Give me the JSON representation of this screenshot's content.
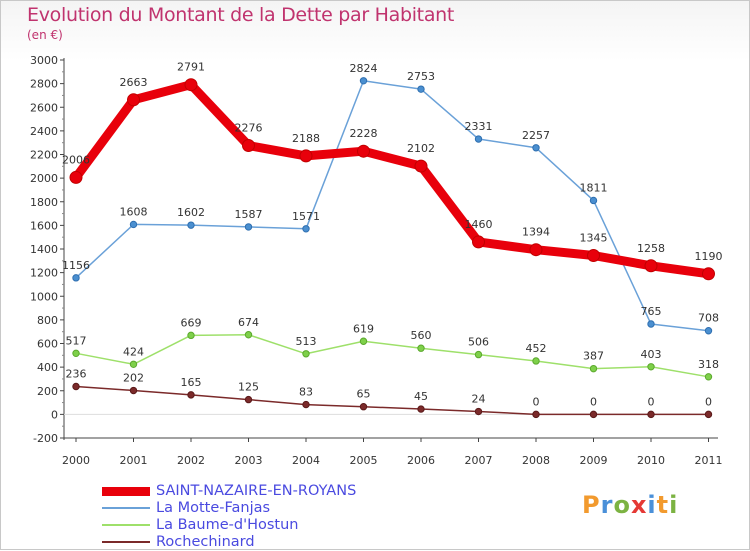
{
  "title": "Evolution du Montant de la Dette par Habitant",
  "unit": "(en €)",
  "logo": {
    "letters": [
      "P",
      "r",
      "o",
      "x",
      "i",
      "t",
      "i"
    ],
    "colors": [
      "#f29a2e",
      "#4a90d9",
      "#7cb342",
      "#e53935",
      "#4a90d9",
      "#f29a2e",
      "#7cb342"
    ]
  },
  "chart_data": {
    "type": "line",
    "title": "Evolution du Montant de la Dette par Habitant",
    "ylabel": "(en €)",
    "x": [
      "2000",
      "2001",
      "2002",
      "2003",
      "2004",
      "2005",
      "2006",
      "2007",
      "2008",
      "2009",
      "2010",
      "2011"
    ],
    "ylim": [
      -200,
      3000
    ],
    "yticks": [
      -200,
      0,
      200,
      400,
      600,
      800,
      1000,
      1200,
      1400,
      1600,
      1800,
      2000,
      2200,
      2400,
      2600,
      2800,
      3000
    ],
    "grid": false,
    "legend": "bottom-left",
    "series": [
      {
        "name": "SAINT-NAZAIRE-EN-ROYANS",
        "color": "#e8000b",
        "values": [
          2006,
          2663,
          2791,
          2276,
          2188,
          2228,
          2102,
          1460,
          1394,
          1345,
          1258,
          1190
        ],
        "labels": [
          "2006",
          "2663",
          "2791",
          "2276",
          "2188",
          "2228",
          "2102",
          "1460",
          "1394",
          "1345",
          "1258",
          "1190"
        ]
      },
      {
        "name": "La Motte-Fanjas",
        "color": "#6aa1d8",
        "values": [
          1156,
          1608,
          1602,
          1587,
          1571,
          2824,
          2753,
          2331,
          2257,
          1811,
          765,
          708
        ],
        "labels": [
          "1156",
          "1608",
          "1602",
          "1587",
          "1571",
          "2824",
          "2753",
          "2331",
          "2257",
          "1811",
          "765",
          "708"
        ]
      },
      {
        "name": "La Baume-d'Hostun",
        "color": "#9ee06a",
        "values": [
          517,
          424,
          669,
          674,
          513,
          619,
          560,
          506,
          452,
          387,
          403,
          318
        ],
        "labels": [
          "517",
          "424",
          "669",
          "674",
          "513",
          "619",
          "560",
          "506",
          "452",
          "387",
          "403",
          "318"
        ]
      },
      {
        "name": "Rochechinard",
        "color": "#7b2a2a",
        "values": [
          236,
          202,
          165,
          125,
          83,
          65,
          45,
          24,
          0,
          0,
          0,
          0
        ],
        "labels": [
          "236",
          "202",
          "165",
          "125",
          "83",
          "65",
          "45",
          "24",
          "0",
          "0",
          "0",
          "0"
        ]
      }
    ]
  }
}
